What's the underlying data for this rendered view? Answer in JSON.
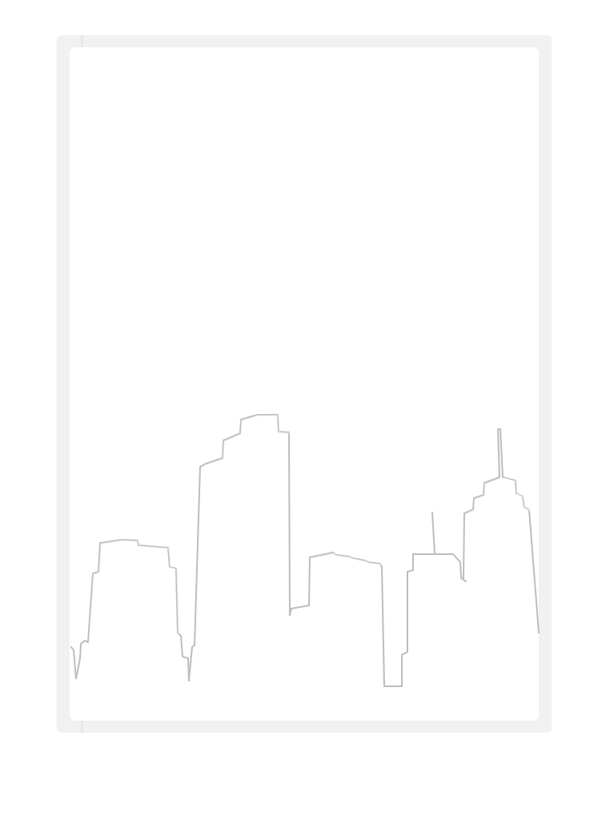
{
  "card": {
    "background_color": "#ffffff",
    "frame_color": "#f1f1f1",
    "emboss_color": "#bdbdbd"
  },
  "illustration": {
    "icon": "city-skyline-emboss"
  }
}
